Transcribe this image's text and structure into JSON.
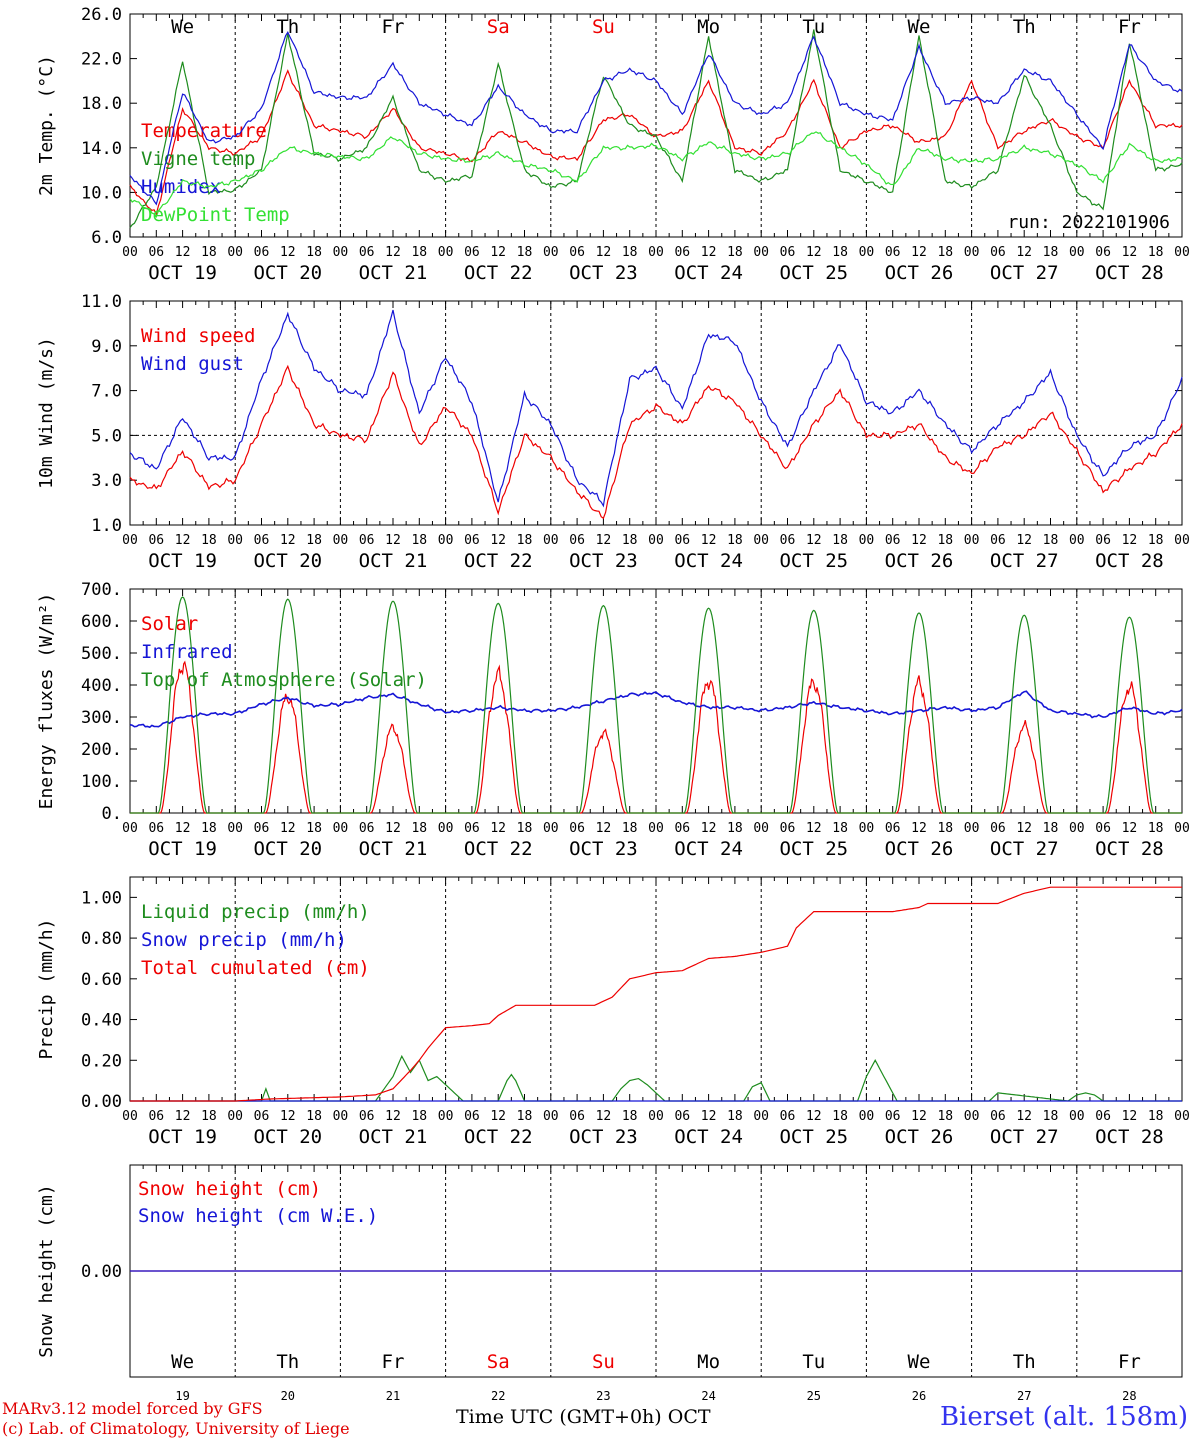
{
  "colors": {
    "red": "#ee0000",
    "green": "#1e8c1e",
    "blue": "#1515d6",
    "lightgreen": "#33e033",
    "darkgreen": "#1f6f1f",
    "weekend": "#ee0000"
  },
  "days": {
    "weekday_labels": [
      "We",
      "Th",
      "Fr",
      "Sa",
      "Su",
      "Mo",
      "Tu",
      "We",
      "Th",
      "Fr"
    ],
    "weekend_flags": [
      false,
      false,
      false,
      true,
      true,
      false,
      false,
      false,
      false,
      false
    ],
    "date_labels": [
      "OCT 19",
      "OCT 20",
      "OCT 21",
      "OCT 22",
      "OCT 23",
      "OCT 24",
      "OCT 25",
      "OCT 26",
      "OCT 27",
      "OCT 28"
    ],
    "day_numbers": [
      "19",
      "20",
      "21",
      "22",
      "23",
      "24",
      "25",
      "26",
      "27",
      "28"
    ],
    "hour_ticks": [
      "00",
      "06",
      "12",
      "18"
    ],
    "final_tick": "00"
  },
  "footer": {
    "model": "MARv3.12 model forced by GFS",
    "lab": "(c) Lab. of Climatology, University of Liege",
    "time_axis": "Time UTC (GMT+0h)",
    "month": "OCT",
    "station": "Bierset (alt. 158m)"
  },
  "chart_data": [
    {
      "id": "temp",
      "type": "line",
      "ylabel": "2m Temp. (°C)",
      "ylim": [
        6,
        26
      ],
      "yticks": [
        "6.0",
        "10.0",
        "14.0",
        "18.0",
        "22.0",
        "26.0"
      ],
      "ytick_values": [
        6,
        10,
        14,
        18,
        22,
        26
      ],
      "run_label": "run: 2022101906",
      "x_unit": "hours since OCT 19 00 UTC",
      "series": [
        {
          "name": "Temperature",
          "color": "red",
          "x": [
            0,
            6,
            12,
            18,
            24,
            30,
            36,
            42,
            48,
            54,
            60,
            66,
            72,
            78,
            84,
            90,
            96,
            102,
            108,
            114,
            120,
            126,
            132,
            138,
            144,
            150,
            156,
            162,
            168,
            174,
            180,
            186,
            192,
            198,
            204,
            210,
            216,
            222,
            228,
            234,
            240
          ],
          "y": [
            10.5,
            8,
            17.5,
            14,
            13.5,
            15,
            20.8,
            16,
            15.5,
            15,
            17.5,
            14,
            13.5,
            12.8,
            15.5,
            14.5,
            13.2,
            13,
            16.5,
            17,
            15,
            15.5,
            20,
            14,
            13.5,
            15.5,
            20,
            14,
            15.5,
            16,
            14.5,
            15,
            20,
            14,
            15.5,
            16.5,
            15,
            14,
            20,
            16,
            16
          ]
        },
        {
          "name": "Vigne temp",
          "color": "green",
          "x": [
            0,
            6,
            12,
            18,
            24,
            30,
            36,
            42,
            48,
            54,
            60,
            66,
            72,
            78,
            84,
            90,
            96,
            102,
            108,
            114,
            120,
            126,
            132,
            138,
            144,
            150,
            156,
            162,
            168,
            174,
            180,
            186,
            192,
            198,
            204,
            210,
            216,
            222,
            228,
            234,
            240
          ],
          "y": [
            6.8,
            10.5,
            21.8,
            10,
            10.2,
            12,
            24.2,
            13.5,
            13,
            14,
            18.5,
            12,
            11,
            11.5,
            21.5,
            12,
            10.5,
            11,
            20.5,
            16,
            15,
            11,
            24,
            12,
            11,
            12,
            24.5,
            12,
            11,
            10,
            24,
            11,
            10.5,
            12,
            20.5,
            16,
            10,
            8.5,
            23.5,
            12,
            12.5
          ]
        },
        {
          "name": "Humidex",
          "color": "blue",
          "x": [
            0,
            6,
            12,
            18,
            24,
            30,
            36,
            42,
            48,
            54,
            60,
            66,
            72,
            78,
            84,
            90,
            96,
            102,
            108,
            114,
            120,
            126,
            132,
            138,
            144,
            150,
            156,
            162,
            168,
            174,
            180,
            186,
            192,
            198,
            204,
            210,
            216,
            222,
            228,
            234,
            240
          ],
          "y": [
            11.5,
            9,
            19,
            14.5,
            15,
            17.5,
            24.5,
            19,
            18.5,
            18.5,
            21.5,
            18,
            17,
            16,
            19.5,
            17,
            15.5,
            15.5,
            20,
            21,
            20,
            17,
            22.5,
            18,
            17,
            18,
            24,
            18,
            17,
            16.5,
            23,
            18,
            18.5,
            18,
            21,
            20,
            17,
            14,
            23.3,
            20,
            19
          ]
        },
        {
          "name": "DewPoint Temp",
          "color": "lightgreen",
          "x": [
            0,
            6,
            12,
            18,
            24,
            30,
            36,
            42,
            48,
            54,
            60,
            66,
            72,
            78,
            84,
            90,
            96,
            102,
            108,
            114,
            120,
            126,
            132,
            138,
            144,
            150,
            156,
            162,
            168,
            174,
            180,
            186,
            192,
            198,
            204,
            210,
            216,
            222,
            228,
            234,
            240
          ],
          "y": [
            9.5,
            8,
            11,
            10.5,
            11,
            12,
            14,
            13.5,
            13.2,
            13,
            15,
            13.5,
            13,
            12.8,
            13.5,
            12.5,
            12,
            11,
            14,
            14,
            14.2,
            13,
            14.5,
            13.5,
            13,
            13.5,
            15.5,
            14,
            12.5,
            10.5,
            14,
            13,
            12.8,
            13,
            14,
            13.5,
            12.5,
            11,
            14.3,
            12.8,
            13
          ]
        }
      ]
    },
    {
      "id": "wind",
      "type": "line",
      "ylabel": "10m Wind (m/s)",
      "ylim": [
        1,
        11
      ],
      "yticks": [
        "1.0",
        "3.0",
        "5.0",
        "7.0",
        "9.0",
        "11.0"
      ],
      "ytick_values": [
        1,
        3,
        5,
        7,
        9,
        11
      ],
      "reference_line": 5,
      "x_unit": "hours since OCT 19 00 UTC",
      "series": [
        {
          "name": "Wind speed",
          "color": "red",
          "x": [
            0,
            6,
            12,
            18,
            24,
            30,
            36,
            42,
            48,
            54,
            60,
            66,
            72,
            78,
            84,
            90,
            96,
            102,
            108,
            114,
            120,
            126,
            132,
            138,
            144,
            150,
            156,
            162,
            168,
            174,
            180,
            186,
            192,
            198,
            204,
            210,
            216,
            222,
            228,
            234,
            240
          ],
          "y": [
            3,
            2.6,
            4.3,
            2.7,
            3,
            5.5,
            8,
            5.5,
            5,
            4.8,
            7.8,
            4.5,
            6.3,
            5,
            1.6,
            5,
            4,
            2.5,
            1.3,
            5.5,
            6.3,
            5.5,
            7.2,
            6.5,
            5,
            3.5,
            5.5,
            7,
            5,
            5,
            5.5,
            4,
            3.3,
            4.5,
            5,
            6,
            4.3,
            2.5,
            3.5,
            4.2,
            5.5
          ]
        },
        {
          "name": "Wind gust",
          "color": "blue",
          "x": [
            0,
            6,
            12,
            18,
            24,
            30,
            36,
            42,
            48,
            54,
            60,
            66,
            72,
            78,
            84,
            90,
            96,
            102,
            108,
            114,
            120,
            126,
            132,
            138,
            144,
            150,
            156,
            162,
            168,
            174,
            180,
            186,
            192,
            198,
            204,
            210,
            216,
            222,
            228,
            234,
            240
          ],
          "y": [
            4.2,
            3.5,
            5.8,
            4,
            4,
            7.5,
            10.4,
            8,
            7,
            6.8,
            10.5,
            6,
            8.5,
            6.5,
            2,
            6.8,
            5.5,
            3,
            2,
            7.5,
            8,
            6.2,
            9.5,
            9.2,
            6.5,
            4.5,
            7,
            9.1,
            6.5,
            6,
            7,
            5.5,
            4.3,
            5.5,
            6.5,
            7.8,
            5,
            3.2,
            4.5,
            5,
            7.5
          ]
        }
      ]
    },
    {
      "id": "energy",
      "type": "line",
      "ylabel": "Energy fluxes (W/m²)",
      "ylim": [
        0,
        700
      ],
      "yticks": [
        "0.",
        "100.",
        "200.",
        "300.",
        "400.",
        "500.",
        "600.",
        "700."
      ],
      "ytick_values": [
        0,
        100,
        200,
        300,
        400,
        500,
        600,
        700
      ],
      "x_unit": "hours since OCT 19 00 UTC",
      "series": [
        {
          "name": "Solar",
          "color": "red",
          "daily_peak": [
            465,
            365,
            265,
            430,
            250,
            415,
            410,
            405,
            270,
            395
          ],
          "day_start_hour": 7,
          "day_end_hour": 17
        },
        {
          "name": "Infrared",
          "color": "blue",
          "x": [
            0,
            6,
            12,
            18,
            24,
            30,
            36,
            42,
            48,
            54,
            60,
            66,
            72,
            78,
            84,
            90,
            96,
            102,
            108,
            114,
            120,
            126,
            132,
            138,
            144,
            150,
            156,
            162,
            168,
            174,
            180,
            186,
            192,
            198,
            204,
            210,
            216,
            222,
            228,
            234,
            240
          ],
          "y": [
            275,
            270,
            300,
            310,
            310,
            340,
            360,
            335,
            340,
            360,
            370,
            340,
            315,
            320,
            330,
            320,
            320,
            330,
            350,
            370,
            375,
            345,
            330,
            330,
            320,
            330,
            345,
            330,
            320,
            310,
            320,
            330,
            320,
            330,
            380,
            320,
            310,
            300,
            330,
            310,
            320
          ]
        },
        {
          "name": "Top of Atmosphere (Solar)",
          "color": "green",
          "daily_peak": [
            675,
            668,
            662,
            655,
            648,
            640,
            633,
            625,
            618,
            612
          ],
          "day_start_hour": 6.5,
          "day_end_hour": 17.5
        }
      ]
    },
    {
      "id": "precip",
      "type": "line",
      "ylabel": "Precip (mm/h)",
      "ylim": [
        0,
        1.1
      ],
      "yticks": [
        "0.00",
        "0.20",
        "0.40",
        "0.60",
        "0.80",
        "1.00"
      ],
      "ytick_values": [
        0,
        0.2,
        0.4,
        0.6,
        0.8,
        1.0
      ],
      "x_unit": "hours since OCT 19 00 UTC",
      "series": [
        {
          "name": "Liquid precip (mm/h)",
          "color": "green",
          "x": [
            0,
            30,
            31,
            32,
            56,
            60,
            62,
            64,
            66,
            68,
            70,
            72,
            74,
            76,
            84,
            86,
            87,
            88,
            90,
            110,
            112,
            114,
            116,
            118,
            120,
            122,
            140,
            142,
            144,
            146,
            166,
            168,
            170,
            172,
            175,
            196,
            198,
            214,
            216,
            218,
            220,
            222,
            240
          ],
          "y": [
            0,
            0,
            0.06,
            0,
            0,
            0.12,
            0.22,
            0.14,
            0.2,
            0.1,
            0.12,
            0.08,
            0.04,
            0,
            0,
            0.1,
            0.13,
            0.1,
            0,
            0,
            0.06,
            0.1,
            0.11,
            0.08,
            0.04,
            0,
            0,
            0.07,
            0.09,
            0,
            0,
            0.12,
            0.2,
            0.12,
            0,
            0,
            0.04,
            0,
            0.03,
            0.04,
            0.03,
            0,
            0
          ]
        },
        {
          "name": "Snow precip (mm/h)",
          "color": "blue",
          "x": [
            0,
            240
          ],
          "y": [
            0,
            0
          ]
        },
        {
          "name": "Total cumulated (cm)",
          "color": "red",
          "x": [
            0,
            24,
            32,
            48,
            56,
            60,
            64,
            66,
            68,
            72,
            78,
            82,
            84,
            88,
            96,
            106,
            110,
            114,
            120,
            126,
            132,
            138,
            144,
            150,
            152,
            156,
            162,
            168,
            174,
            180,
            182,
            190,
            198,
            204,
            210,
            216,
            222,
            240
          ],
          "y": [
            0,
            0,
            0.01,
            0.02,
            0.03,
            0.06,
            0.15,
            0.2,
            0.26,
            0.36,
            0.37,
            0.38,
            0.42,
            0.47,
            0.47,
            0.47,
            0.51,
            0.6,
            0.63,
            0.64,
            0.7,
            0.71,
            0.73,
            0.76,
            0.85,
            0.93,
            0.93,
            0.93,
            0.93,
            0.95,
            0.97,
            0.97,
            0.97,
            1.02,
            1.05,
            1.05,
            1.05,
            1.05
          ]
        }
      ]
    },
    {
      "id": "snow",
      "type": "line",
      "ylabel": "Snow height (cm)",
      "ylim": [
        -1,
        1
      ],
      "yticks": [
        "0.00"
      ],
      "ytick_values": [
        0
      ],
      "x_unit": "hours since OCT 19 00 UTC",
      "series": [
        {
          "name": "Snow height (cm)",
          "color": "red",
          "x": [
            0,
            240
          ],
          "y": [
            0,
            0
          ]
        },
        {
          "name": "Snow height (cm W.E.)",
          "color": "blue",
          "x": [
            0,
            240
          ],
          "y": [
            0,
            0
          ]
        }
      ]
    }
  ]
}
